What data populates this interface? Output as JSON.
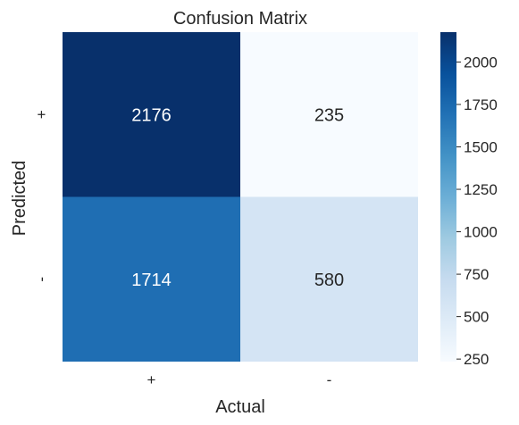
{
  "chart_data": {
    "type": "heatmap",
    "title": "Confusion Matrix",
    "xlabel": "Actual",
    "ylabel": "Predicted",
    "x_categories": [
      "+",
      "-"
    ],
    "y_categories": [
      "+",
      "-"
    ],
    "values": [
      [
        2176,
        235
      ],
      [
        1714,
        580
      ]
    ],
    "colormap": "Blues",
    "colorbar": {
      "range": [
        235,
        2176
      ],
      "ticks": [
        250,
        500,
        750,
        1000,
        1250,
        1500,
        1750,
        2000
      ]
    },
    "grid": false
  }
}
